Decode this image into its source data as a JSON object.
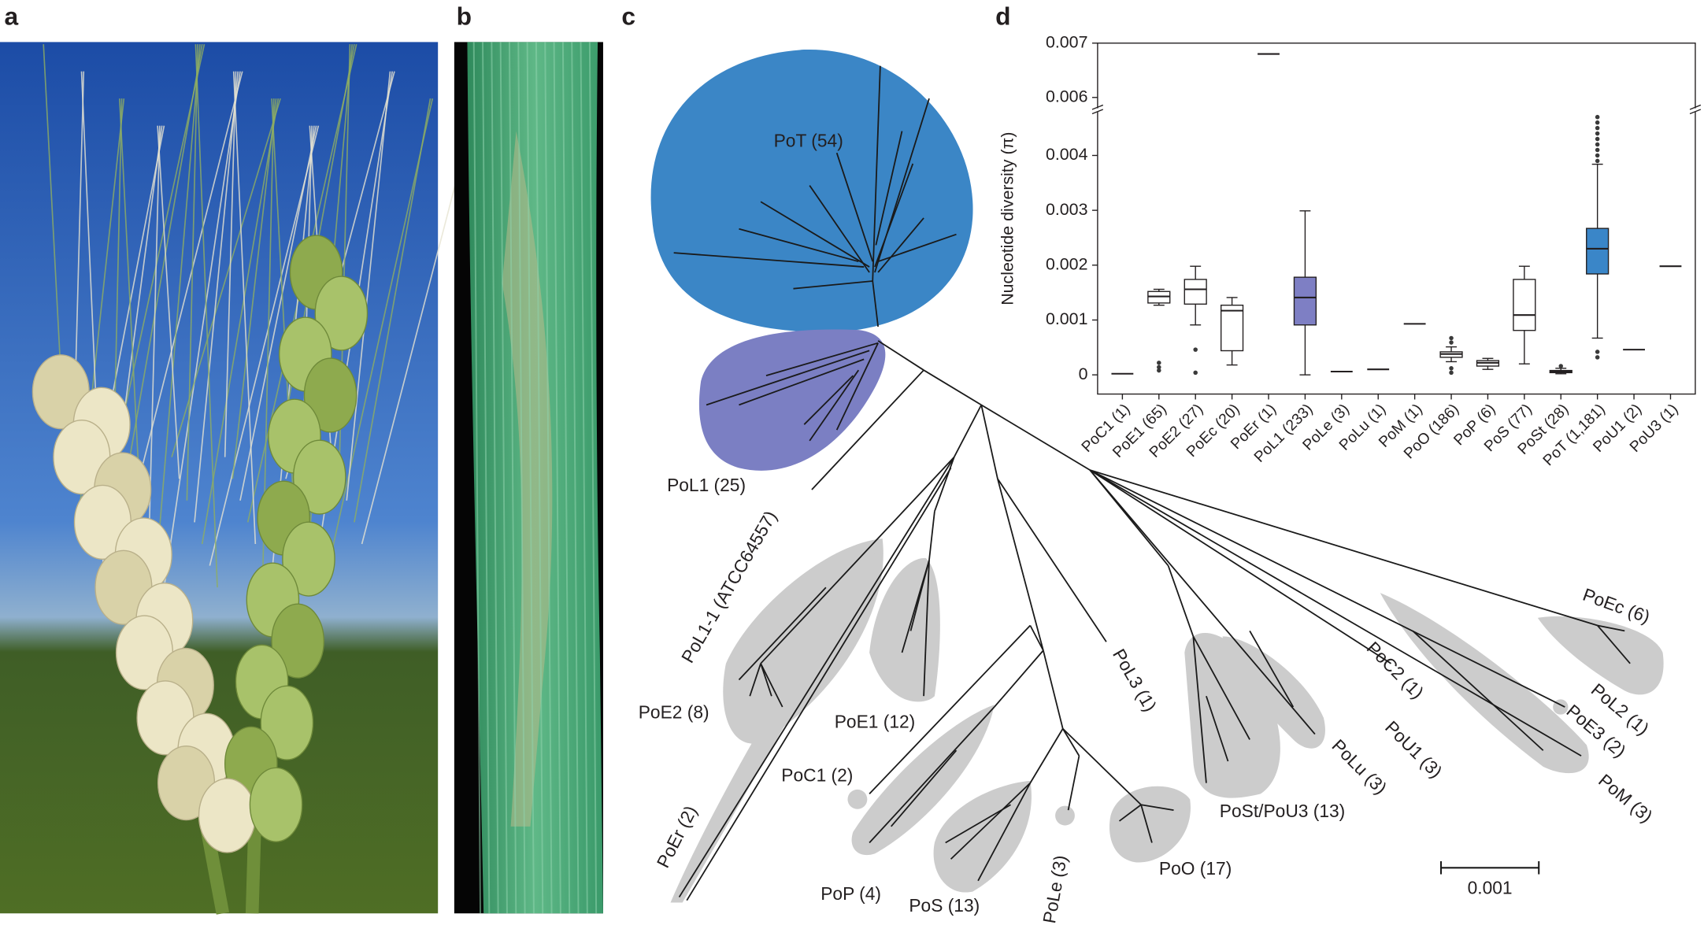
{
  "panel_labels": [
    "a",
    "b",
    "c",
    "d"
  ],
  "tree": {
    "clades": [
      "PoT (54)",
      "PoL1 (25)",
      "PoL1-1 (ATCC64557)",
      "PoE2 (8)",
      "PoE1 (12)",
      "PoC1 (2)",
      "PoEr (2)",
      "PoP (4)",
      "PoS (13)",
      "PoLe (3)",
      "PoO (17)",
      "PoL3 (1)",
      "PoSt/PoU3 (13)",
      "PoLu (3)",
      "PoU1 (3)",
      "PoC2 (1)",
      "PoL2 (1)",
      "PoE3 (2)",
      "PoM (3)",
      "PoEc (6)"
    ],
    "scale_bar": "0.001"
  },
  "chart_data": {
    "type": "box",
    "y_label": "Nucleotide diversity (π)",
    "categories": [
      "PoC1 (1)",
      "PoE1 (65)",
      "PoE2 (27)",
      "PoEc (20)",
      "PoEr (1)",
      "PoL1 (233)",
      "PoLe (3)",
      "PoLu (1)",
      "PoM (1)",
      "PoO (186)",
      "PoP (6)",
      "PoS (77)",
      "PoSt (28)",
      "PoT (1,181)",
      "PoU1 (2)",
      "PoU3 (1)"
    ],
    "boxes": [
      {
        "median": 2e-05,
        "color": "#ffffff"
      },
      {
        "whisker_low": 0.00127,
        "q1": 0.00131,
        "median": 0.00143,
        "q3": 0.00152,
        "whisker_high": 0.00156,
        "outliers": [
          0.00022,
          0.00014,
          8e-05
        ],
        "color": "#ffffff"
      },
      {
        "whisker_low": 0.00091,
        "q1": 0.00129,
        "median": 0.00156,
        "q3": 0.00174,
        "whisker_high": 0.00198,
        "outliers": [
          0.00046,
          4e-05
        ],
        "color": "#ffffff"
      },
      {
        "whisker_low": 0.00018,
        "q1": 0.00044,
        "median": 0.00117,
        "q3": 0.00127,
        "whisker_high": 0.00141,
        "color": "#ffffff"
      },
      {
        "median": 0.0068,
        "color": "#ffffff"
      },
      {
        "whisker_low": 0,
        "q1": 0.00091,
        "median": 0.00141,
        "q3": 0.00178,
        "whisker_high": 0.00299,
        "color": "#7e7fc4"
      },
      {
        "median": 6e-05,
        "color": "#ffffff"
      },
      {
        "median": 0.0001,
        "color": "#ffffff"
      },
      {
        "median": 0.00093,
        "color": "#ffffff"
      },
      {
        "whisker_low": 0.00024,
        "q1": 0.00032,
        "median": 0.00038,
        "q3": 0.00042,
        "whisker_high": 0.00051,
        "outliers": [
          0.00067,
          0.00059,
          0.00012,
          4e-05
        ],
        "color": "#ffffff"
      },
      {
        "whisker_low": 0.0001,
        "q1": 0.00016,
        "median": 0.00022,
        "q3": 0.00026,
        "whisker_high": 0.0003,
        "color": "#ffffff"
      },
      {
        "whisker_low": 0.0002,
        "q1": 0.00081,
        "median": 0.00109,
        "q3": 0.00174,
        "whisker_high": 0.00198,
        "color": "#ffffff"
      },
      {
        "whisker_low": 2e-05,
        "q1": 4e-05,
        "median": 6e-05,
        "q3": 8e-05,
        "whisker_high": 0.00012,
        "outliers": [
          0.00016
        ],
        "color": "#ffffff"
      },
      {
        "whisker_low": 0.00067,
        "q1": 0.00184,
        "median": 0.0023,
        "q3": 0.00267,
        "whisker_high": 0.00384,
        "outliers": [
          0.0047,
          0.0046,
          0.0045,
          0.0044,
          0.0043,
          0.0042,
          0.0041,
          0.004,
          0.0039,
          0.00042,
          0.00032
        ],
        "color": "#3a86c8"
      },
      {
        "median": 0.00046,
        "color": "#ffffff"
      },
      {
        "median": 0.00198,
        "color": "#ffffff"
      }
    ],
    "ylim": [
      -0.00035,
      0.007
    ],
    "y_break": [
      0.0048,
      0.0058
    ],
    "yticks": [
      0,
      0.001,
      0.002,
      0.003,
      0.004,
      0.006,
      0.007
    ]
  }
}
